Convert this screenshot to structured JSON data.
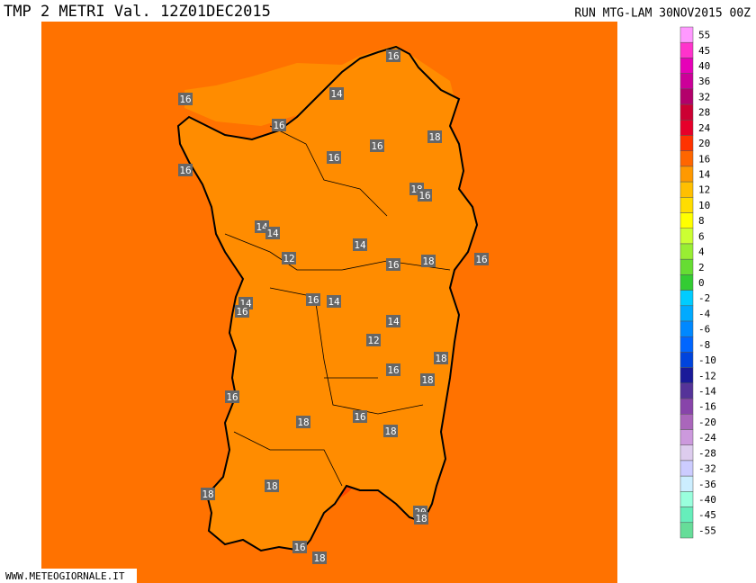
{
  "header": {
    "title": "TMP 2 METRI Val. 12Z01DEC2015",
    "run": "RUN MTG-LAM 30NOV2015 00Z"
  },
  "footer": "WWW.METEOGIORNALE.IT",
  "legend": {
    "labels": [
      "55",
      "45",
      "40",
      "36",
      "32",
      "28",
      "24",
      "20",
      "16",
      "14",
      "12",
      "10",
      "8",
      "6",
      "4",
      "2",
      "0",
      "-2",
      "-4",
      "-6",
      "-8",
      "-10",
      "-12",
      "-14",
      "-16",
      "-20",
      "-24",
      "-28",
      "-32",
      "-36",
      "-40",
      "-45",
      "-55"
    ],
    "colors": [
      "#ff99ff",
      "#ff33cc",
      "#e600b8",
      "#cc0099",
      "#b3006b",
      "#cc0033",
      "#e6002a",
      "#ff3300",
      "#ff6600",
      "#ff9900",
      "#ffbf00",
      "#ffdd00",
      "#ffff00",
      "#ccff33",
      "#99ee33",
      "#66dd33",
      "#33cc33",
      "#00ccff",
      "#00aaff",
      "#0088ff",
      "#0066ff",
      "#0044dd",
      "#1a1a99",
      "#553399",
      "#8844aa",
      "#aa66bb",
      "#cc99dd",
      "#ddccee",
      "#ccccff",
      "#cceeff",
      "#99ffdd",
      "#66eebb",
      "#66dd99"
    ]
  },
  "map": {
    "labels": [
      "16",
      "16",
      "14",
      "16",
      "18",
      "16",
      "16",
      "16",
      "18",
      "16",
      "14",
      "14",
      "14",
      "12",
      "16",
      "18",
      "16",
      "14",
      "16",
      "16",
      "14",
      "14",
      "12",
      "18",
      "16",
      "18",
      "16",
      "18",
      "16",
      "18",
      "18",
      "18",
      "20",
      "18",
      "16",
      "18"
    ]
  }
}
